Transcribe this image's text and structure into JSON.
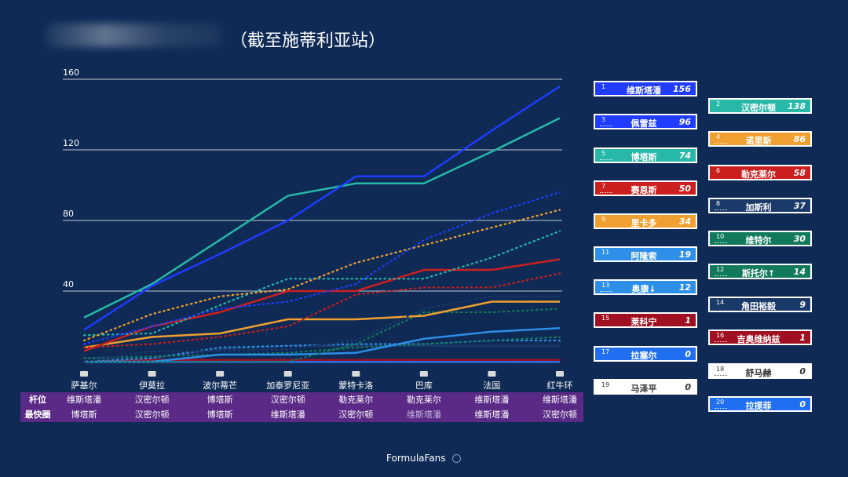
{
  "header": {
    "title": "（截至施蒂利亚站）"
  },
  "footer": {
    "text": "FormulaFans"
  },
  "table": {
    "pole_label": "杆位",
    "fastest_label": "最快圈",
    "pole": [
      "维斯塔潘",
      "汉密尔顿",
      "博塔斯",
      "汉密尔顿",
      "勒克莱尔",
      "勒克莱尔",
      "维斯塔潘",
      "维斯塔潘"
    ],
    "fastest": [
      "博塔斯",
      "汉密尔顿",
      "博塔斯",
      "维斯塔潘",
      "汉密尔顿",
      "维斯塔潘",
      "维斯塔潘",
      "汉密尔顿"
    ]
  },
  "chart_data": {
    "type": "line",
    "categories": [
      "萨基尔",
      "伊莫拉",
      "波尔蒂芒",
      "加泰罗尼亚",
      "蒙特卡洛",
      "巴库",
      "法国",
      "红牛环"
    ],
    "ylim": [
      0,
      160
    ],
    "yticks": [
      40,
      80,
      120,
      160
    ],
    "series": [
      {
        "num": "1",
        "name": "维斯塔潘",
        "points": 156,
        "color": "#1f3cff",
        "style": "solid",
        "values": [
          18,
          43,
          61,
          80,
          105,
          105,
          131,
          156
        ]
      },
      {
        "num": "2",
        "name": "汉密尔顿",
        "points": 138,
        "color": "#27b8a8",
        "style": "solid",
        "values": [
          25,
          44,
          69,
          94,
          101,
          101,
          119,
          138
        ]
      },
      {
        "num": "3",
        "name": "佩雷兹",
        "points": 96,
        "color": "#1f3cff",
        "style": "dotted",
        "values": [
          10,
          20,
          30,
          34,
          44,
          69,
          84,
          96
        ]
      },
      {
        "num": "4",
        "name": "诺里斯",
        "points": 86,
        "color": "#f0a030",
        "style": "dotted",
        "values": [
          12,
          27,
          37,
          41,
          56,
          66,
          76,
          86
        ]
      },
      {
        "num": "5",
        "name": "博塔斯",
        "points": 74,
        "color": "#27b8a8",
        "style": "dotted",
        "values": [
          15,
          16,
          32,
          47,
          47,
          47,
          59,
          74
        ]
      },
      {
        "num": "6",
        "name": "勒克莱尔",
        "points": 58,
        "color": "#cc1f1f",
        "style": "solid",
        "values": [
          6,
          20,
          28,
          40,
          40,
          52,
          52,
          58
        ]
      },
      {
        "num": "7",
        "name": "赛恩斯",
        "points": 50,
        "color": "#cc1f1f",
        "style": "dotted",
        "values": [
          8,
          10,
          14,
          20,
          38,
          42,
          42,
          50
        ]
      },
      {
        "num": "8",
        "name": "加斯利",
        "points": 37,
        "color": "#1a3a6a",
        "style": "dotted",
        "values": [
          0,
          6,
          6,
          7,
          12,
          30,
          37,
          37
        ]
      },
      {
        "num": "9",
        "name": "里卡多",
        "points": 34,
        "color": "#f0a030",
        "style": "solid",
        "values": [
          8,
          14,
          16,
          24,
          24,
          26,
          34,
          34
        ]
      },
      {
        "num": "10",
        "name": "维特尔",
        "points": 30,
        "color": "#127a5c",
        "style": "dotted",
        "values": [
          0,
          0,
          0,
          0,
          10,
          28,
          28,
          30
        ]
      },
      {
        "num": "11",
        "name": "阿隆索",
        "points": 19,
        "color": "#2d8fe8",
        "style": "solid",
        "values": [
          0,
          0,
          4,
          4,
          5,
          13,
          17,
          19
        ]
      },
      {
        "num": "12",
        "name": "斯托尔",
        "points": 14,
        "color": "#127a5c",
        "style": "dotted",
        "values": [
          2,
          3,
          4,
          5,
          8,
          10,
          12,
          14
        ]
      },
      {
        "num": "13",
        "name": "奥康",
        "points": 12,
        "color": "#2d8fe8",
        "style": "dotted",
        "values": [
          0,
          2,
          8,
          9,
          10,
          10,
          12,
          12
        ]
      },
      {
        "num": "14",
        "name": "角田裕毅",
        "points": 9,
        "color": "#1a3a6a",
        "style": "solid",
        "values": [
          2,
          2,
          7,
          9,
          9,
          9,
          9,
          9
        ]
      },
      {
        "num": "15",
        "name": "莱科宁",
        "points": 1,
        "color": "#a01020",
        "style": "solid",
        "values": [
          0,
          1,
          1,
          1,
          1,
          1,
          1,
          1
        ]
      },
      {
        "num": "16",
        "name": "吉奥维纳兹",
        "points": 1,
        "color": "#a01020",
        "style": "dotted",
        "values": [
          0,
          0,
          1,
          1,
          1,
          1,
          1,
          1
        ]
      },
      {
        "num": "17",
        "name": "拉塞尔",
        "points": 0,
        "color": "#1f6ff0",
        "style": "solid",
        "values": [
          0,
          0,
          0,
          0,
          0,
          0,
          0,
          0
        ]
      },
      {
        "num": "18",
        "name": "舒马赫",
        "points": 0,
        "color": "#ffffff",
        "style": "dotted",
        "values": [
          0,
          0,
          0,
          0,
          0,
          0,
          0,
          0
        ]
      },
      {
        "num": "19",
        "name": "马泽平",
        "points": 0,
        "color": "#ffffff",
        "style": "solid",
        "values": [
          0,
          0,
          0,
          0,
          0,
          0,
          0,
          0
        ]
      },
      {
        "num": "20",
        "name": "拉提菲",
        "points": 0,
        "color": "#1f6ff0",
        "style": "dotted",
        "values": [
          0,
          0,
          0,
          0,
          0,
          0,
          0,
          0
        ]
      }
    ],
    "badge_labels": {
      "12": "斯托尔↑",
      "13": "奥康↓"
    }
  }
}
